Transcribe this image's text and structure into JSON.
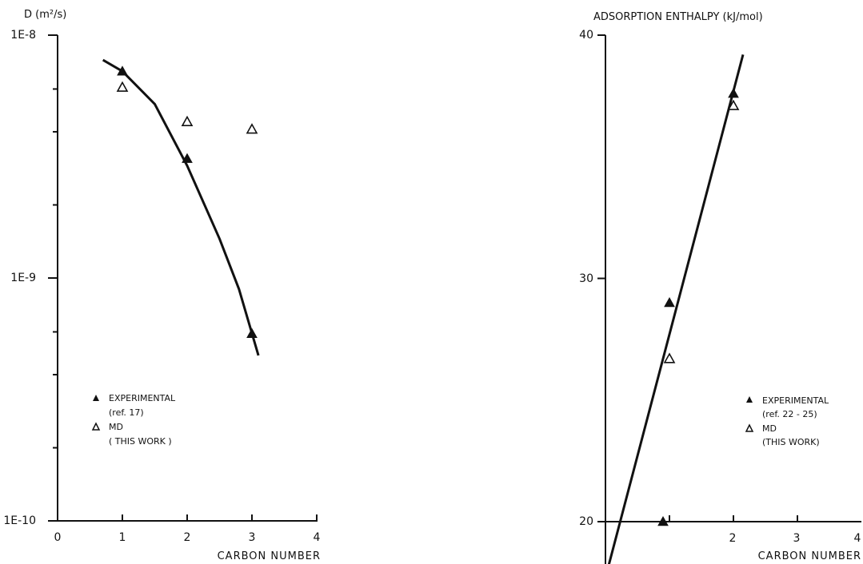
{
  "chart_data": [
    {
      "type": "scatter",
      "title": "",
      "ylabel": "D (m²/s)",
      "xlabel": "CARBON NUMBER",
      "yscale": "log",
      "xlim": [
        0,
        4
      ],
      "ylim": [
        1e-10,
        1e-08
      ],
      "xticks": [
        "0",
        "1",
        "2",
        "3",
        "4"
      ],
      "yticks": [
        {
          "value": 1e-08,
          "label": "1E-8"
        },
        {
          "value": 1e-09,
          "label": "1E-9"
        },
        {
          "value": 1e-10,
          "label": "1E-10"
        }
      ],
      "series": [
        {
          "name": "EXPERIMENTAL",
          "marker": "filled-triangle",
          "x": [
            1,
            2,
            3
          ],
          "y": [
            7.1e-09,
            3.1e-09,
            5.9e-10
          ]
        },
        {
          "name": "MD",
          "marker": "open-triangle",
          "x": [
            1,
            2,
            3
          ],
          "y": [
            6.1e-09,
            4.4e-09,
            4.1e-09
          ]
        }
      ],
      "fit_curve": {
        "x": [
          0.7,
          1.0,
          1.5,
          2.0,
          2.5,
          2.8,
          3.1
        ],
        "y": [
          7.9e-09,
          7.1e-09,
          5.2e-09,
          2.9e-09,
          1.45e-09,
          9e-10,
          4.8e-10
        ]
      },
      "legend": {
        "placement": "lower-left",
        "entries": [
          "EXPERIMENTAL",
          "(ref. 17)",
          "MD",
          "( THIS WORK )"
        ]
      },
      "grid": false
    },
    {
      "type": "scatter",
      "title": "",
      "ylabel": "ADSORPTION ENTHALPY (kJ/mol)",
      "xlabel": "CARBON NUMBER",
      "xlim": [
        0,
        4
      ],
      "ylim": [
        20,
        40
      ],
      "xticks": [
        "2",
        "3",
        "4"
      ],
      "yticks": [
        {
          "value": 40,
          "label": "40"
        },
        {
          "value": 30,
          "label": "30"
        },
        {
          "value": 20,
          "label": "20"
        }
      ],
      "series": [
        {
          "name": "EXPERIMENTAL",
          "marker": "filled-triangle",
          "x": [
            1,
            2,
            3
          ],
          "y": [
            20.0,
            29.0,
            37.6
          ]
        },
        {
          "name": "MD",
          "marker": "open-triangle",
          "x": [
            2,
            3
          ],
          "y": [
            26.7,
            37.1
          ]
        }
      ],
      "fit_line": {
        "x": [
          1.05,
          3.15
        ],
        "y": [
          18.2,
          39.2
        ]
      },
      "legend": {
        "placement": "lower-right",
        "entries": [
          "EXPERIMENTAL",
          "(ref. 22 - 25)",
          "MD",
          "(THIS WORK)"
        ]
      },
      "grid": false
    }
  ]
}
